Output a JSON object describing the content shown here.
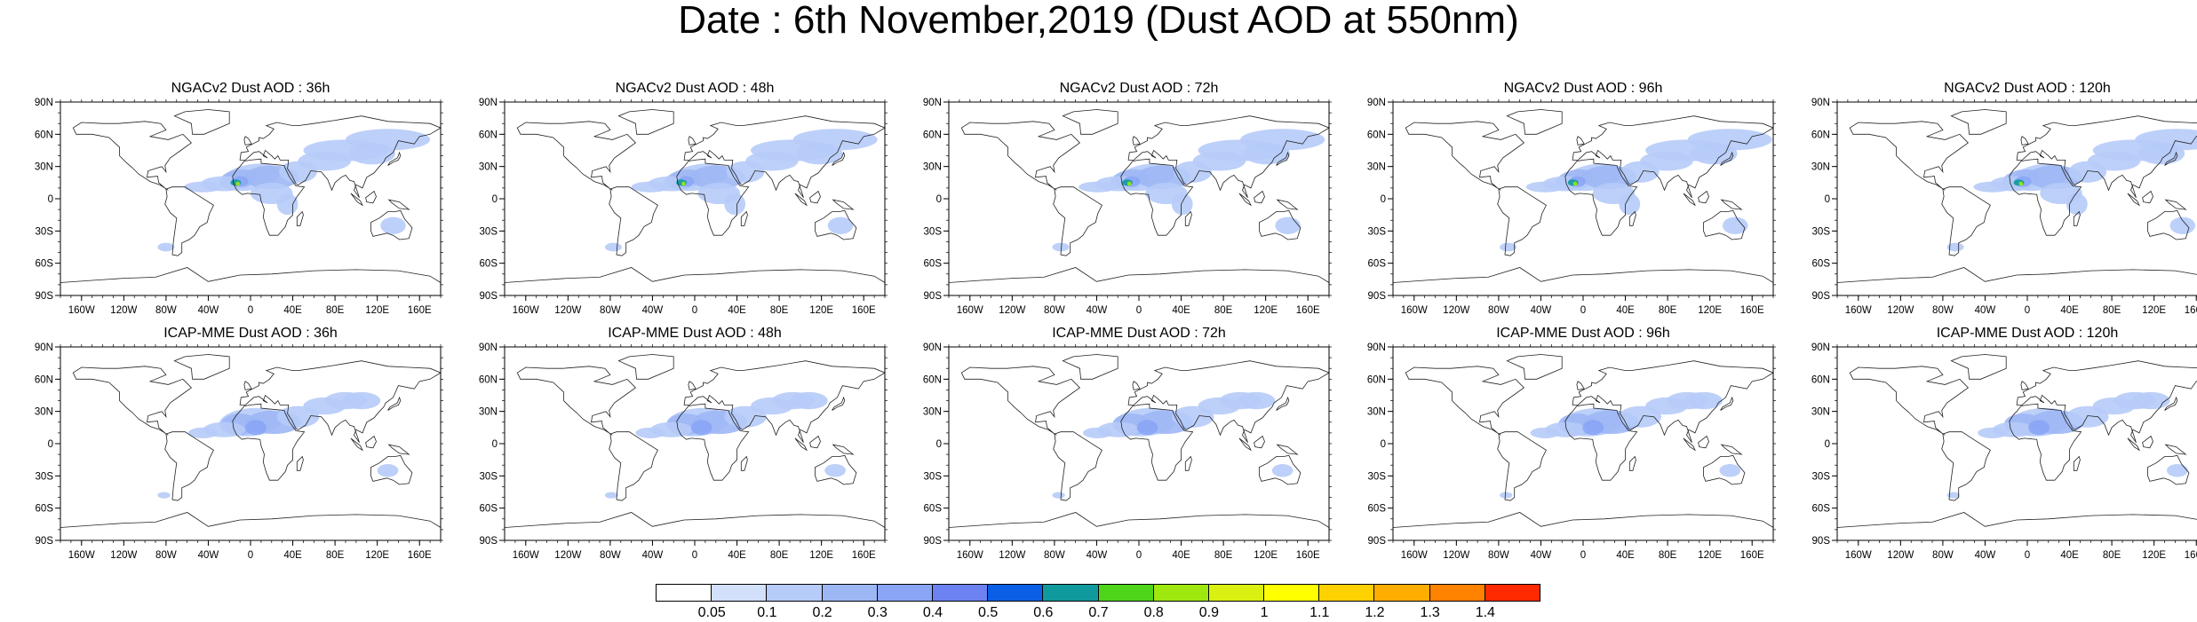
{
  "title": "Date : 6th November,2019 (Dust AOD at 550nm)",
  "panels": [
    {
      "row": 0,
      "col": 0,
      "title": "NGACv2 Dust AOD : 36h"
    },
    {
      "row": 0,
      "col": 1,
      "title": "NGACv2 Dust AOD : 48h"
    },
    {
      "row": 0,
      "col": 2,
      "title": "NGACv2 Dust AOD : 72h"
    },
    {
      "row": 0,
      "col": 3,
      "title": "NGACv2 Dust AOD : 96h"
    },
    {
      "row": 0,
      "col": 4,
      "title": "NGACv2 Dust AOD : 120h"
    },
    {
      "row": 1,
      "col": 0,
      "title": "ICAP-MME Dust AOD : 36h"
    },
    {
      "row": 1,
      "col": 1,
      "title": "ICAP-MME Dust AOD : 48h"
    },
    {
      "row": 1,
      "col": 2,
      "title": "ICAP-MME Dust AOD : 72h"
    },
    {
      "row": 1,
      "col": 3,
      "title": "ICAP-MME Dust AOD : 96h"
    },
    {
      "row": 1,
      "col": 4,
      "title": "ICAP-MME Dust AOD : 120h"
    }
  ],
  "lat_ticks": [
    "90N",
    "60N",
    "30N",
    "0",
    "30S",
    "60S",
    "90S"
  ],
  "lat_values": [
    90,
    60,
    30,
    0,
    -30,
    -60,
    -90
  ],
  "lon_ticks": [
    "160W",
    "120W",
    "80W",
    "40W",
    "0",
    "40E",
    "80E",
    "120E",
    "160E"
  ],
  "lon_values": [
    -160,
    -120,
    -80,
    -40,
    0,
    40,
    80,
    120,
    160
  ],
  "colorbar": {
    "labels": [
      "0.05",
      "0.1",
      "0.2",
      "0.3",
      "0.4",
      "0.5",
      "0.6",
      "0.7",
      "0.8",
      "0.9",
      "1",
      "1.1",
      "1.2",
      "1.3",
      "1.4"
    ],
    "colors": [
      "#ffffff",
      "#d2e0fb",
      "#b6cbf8",
      "#9db7f5",
      "#8aa5f5",
      "#6c82f0",
      "#0a5fe6",
      "#109a9e",
      "#4ed41a",
      "#9ee80f",
      "#d9f010",
      "#ffff00",
      "#ffd100",
      "#ffae00",
      "#ff8200",
      "#ff2a00"
    ]
  },
  "dust_plumes": {
    "NGACv2": {
      "max_aod": 0.8,
      "regions": [
        "Sahara",
        "Arabia",
        "Central Asia",
        "Atlantic outflow",
        "Australia",
        "South America"
      ]
    },
    "ICAP-MME": {
      "max_aod": 0.4,
      "regions": [
        "Sahara",
        "Arabia",
        "Central Asia",
        "Atlantic outflow",
        "Australia"
      ]
    }
  }
}
